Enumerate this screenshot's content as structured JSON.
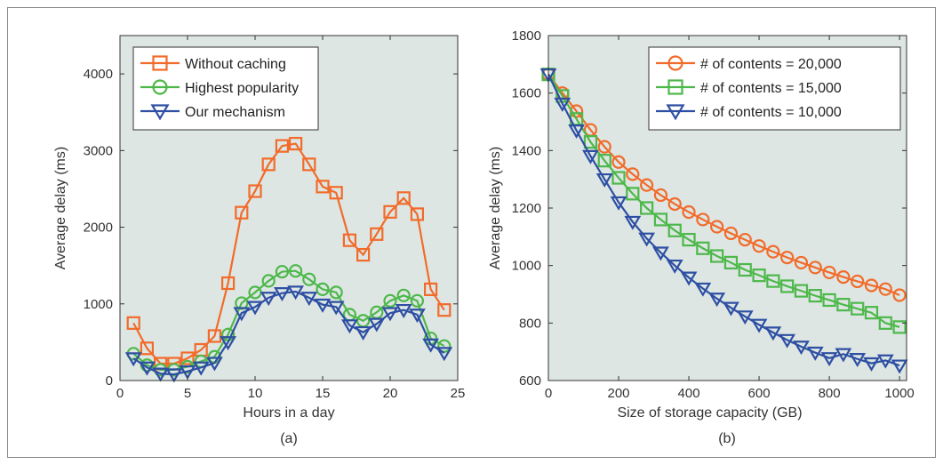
{
  "chart_data": [
    {
      "type": "line",
      "panel_label": "(a)",
      "xlabel": "Hours in a day",
      "ylabel": "Average delay (ms)",
      "xlim": [
        0,
        25
      ],
      "ylim": [
        0,
        4500
      ],
      "xticks": [
        0,
        5,
        10,
        15,
        20,
        25
      ],
      "yticks": [
        0,
        1000,
        2000,
        3000,
        4000
      ],
      "grid": false,
      "legend_position": "top-left",
      "x": [
        1,
        2,
        3,
        4,
        5,
        6,
        7,
        8,
        9,
        10,
        11,
        12,
        13,
        14,
        15,
        16,
        17,
        18,
        19,
        20,
        21,
        22,
        23,
        24
      ],
      "series": [
        {
          "name": "Without caching",
          "color": "#f26b2a",
          "marker": "square",
          "values": [
            750,
            420,
            220,
            220,
            290,
            400,
            580,
            1270,
            2190,
            2470,
            2820,
            3060,
            3090,
            2820,
            2530,
            2450,
            1830,
            1640,
            1910,
            2200,
            2380,
            2170,
            1190,
            920
          ]
        },
        {
          "name": "Highest popularity",
          "color": "#4db84a",
          "marker": "circle",
          "values": [
            350,
            200,
            140,
            140,
            180,
            250,
            310,
            600,
            1010,
            1150,
            1300,
            1420,
            1430,
            1320,
            1190,
            1150,
            860,
            780,
            890,
            1040,
            1110,
            1040,
            550,
            450
          ]
        },
        {
          "name": "Our mechanism",
          "color": "#2e4fa3",
          "marker": "triangle-down",
          "values": [
            290,
            170,
            90,
            80,
            120,
            170,
            230,
            500,
            880,
            960,
            1080,
            1140,
            1160,
            1080,
            990,
            960,
            720,
            630,
            740,
            880,
            920,
            860,
            470,
            360
          ]
        }
      ]
    },
    {
      "type": "line",
      "panel_label": "(b)",
      "xlabel": "Size of storage capacity (GB)",
      "ylabel": "Average delay (ms)",
      "xlim": [
        0,
        1020
      ],
      "ylim": [
        600,
        1800
      ],
      "xticks": [
        0,
        200,
        400,
        600,
        800,
        1000
      ],
      "yticks": [
        600,
        800,
        1000,
        1200,
        1400,
        1600,
        1800
      ],
      "grid": false,
      "legend_position": "top-right",
      "x": [
        0,
        40,
        80,
        120,
        160,
        200,
        240,
        280,
        320,
        360,
        400,
        440,
        480,
        520,
        560,
        600,
        640,
        680,
        720,
        760,
        800,
        840,
        880,
        920,
        960,
        1000
      ],
      "series": [
        {
          "name": "# of contents = 20,000",
          "color": "#f26b2a",
          "marker": "circle",
          "values": [
            1665,
            1600,
            1537,
            1472,
            1413,
            1360,
            1318,
            1280,
            1245,
            1214,
            1186,
            1160,
            1135,
            1112,
            1090,
            1068,
            1048,
            1028,
            1010,
            993,
            976,
            960,
            945,
            931,
            918,
            897
          ]
        },
        {
          "name": "# of contents = 15,000",
          "color": "#4db84a",
          "marker": "square",
          "values": [
            1665,
            1590,
            1510,
            1430,
            1365,
            1305,
            1250,
            1200,
            1160,
            1122,
            1090,
            1060,
            1033,
            1010,
            985,
            966,
            946,
            928,
            912,
            895,
            880,
            864,
            850,
            836,
            800,
            786
          ]
        },
        {
          "name": "# of contents = 10,000",
          "color": "#2e4fa3",
          "marker": "triangle-down",
          "values": [
            1665,
            1563,
            1470,
            1381,
            1300,
            1220,
            1152,
            1094,
            1045,
            1000,
            958,
            920,
            885,
            853,
            823,
            794,
            767,
            741,
            718,
            697,
            678,
            692,
            675,
            660,
            670,
            652
          ]
        }
      ]
    }
  ]
}
